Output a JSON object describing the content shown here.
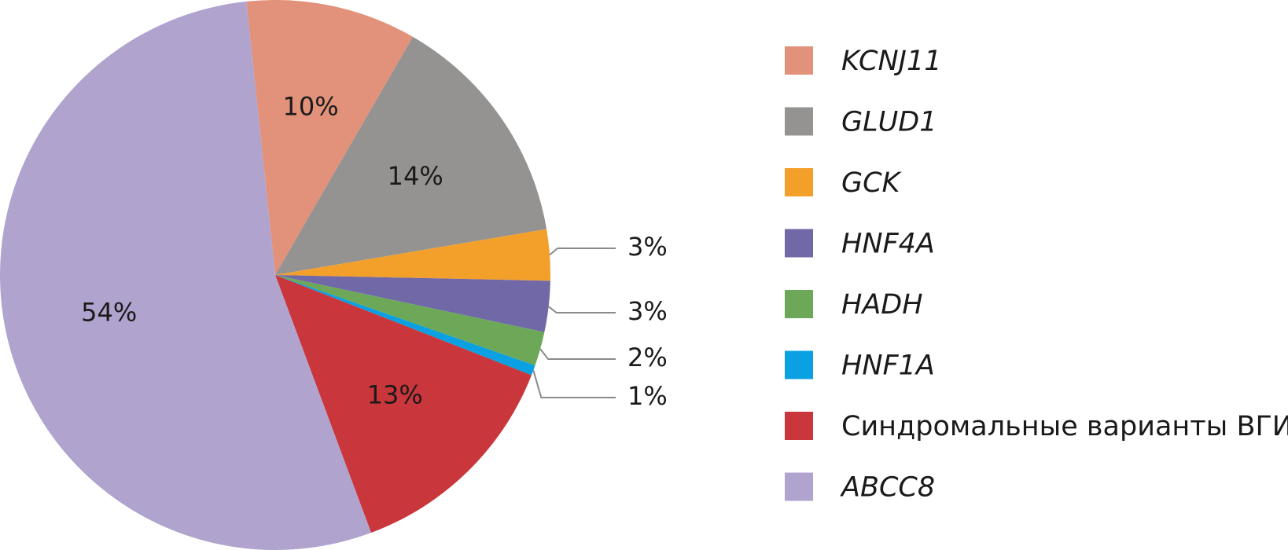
{
  "chart_data": {
    "type": "pie",
    "title": "",
    "start_angle_deg": -96,
    "slices": [
      {
        "name": "KCNJ11",
        "value": 10,
        "label": "10%",
        "color": "#E2917A",
        "italic": true,
        "callout": false
      },
      {
        "name": "GLUD1",
        "value": 14,
        "label": "14%",
        "color": "#949391",
        "italic": true,
        "callout": false
      },
      {
        "name": "GCK",
        "value": 3,
        "label": "3%",
        "color": "#F3A02B",
        "italic": true,
        "callout": true
      },
      {
        "name": "HNF4A",
        "value": 3,
        "label": "3%",
        "color": "#7068A7",
        "italic": true,
        "callout": true
      },
      {
        "name": "HADH",
        "value": 2,
        "label": "2%",
        "color": "#6CA857",
        "italic": true,
        "callout": true
      },
      {
        "name": "HNF1A",
        "value": 0.6,
        "label": "1%",
        "color": "#0AA0E2",
        "italic": true,
        "callout": true
      },
      {
        "name": "Синдромальные варианты ВГИ",
        "value": 13.4,
        "label": "13%",
        "color": "#C9363B",
        "italic": false,
        "callout": false
      },
      {
        "name": "ABCC8",
        "value": 54,
        "label": "54%",
        "color": "#B0A4CF",
        "italic": true,
        "callout": false
      }
    ],
    "legend_position": "right"
  }
}
